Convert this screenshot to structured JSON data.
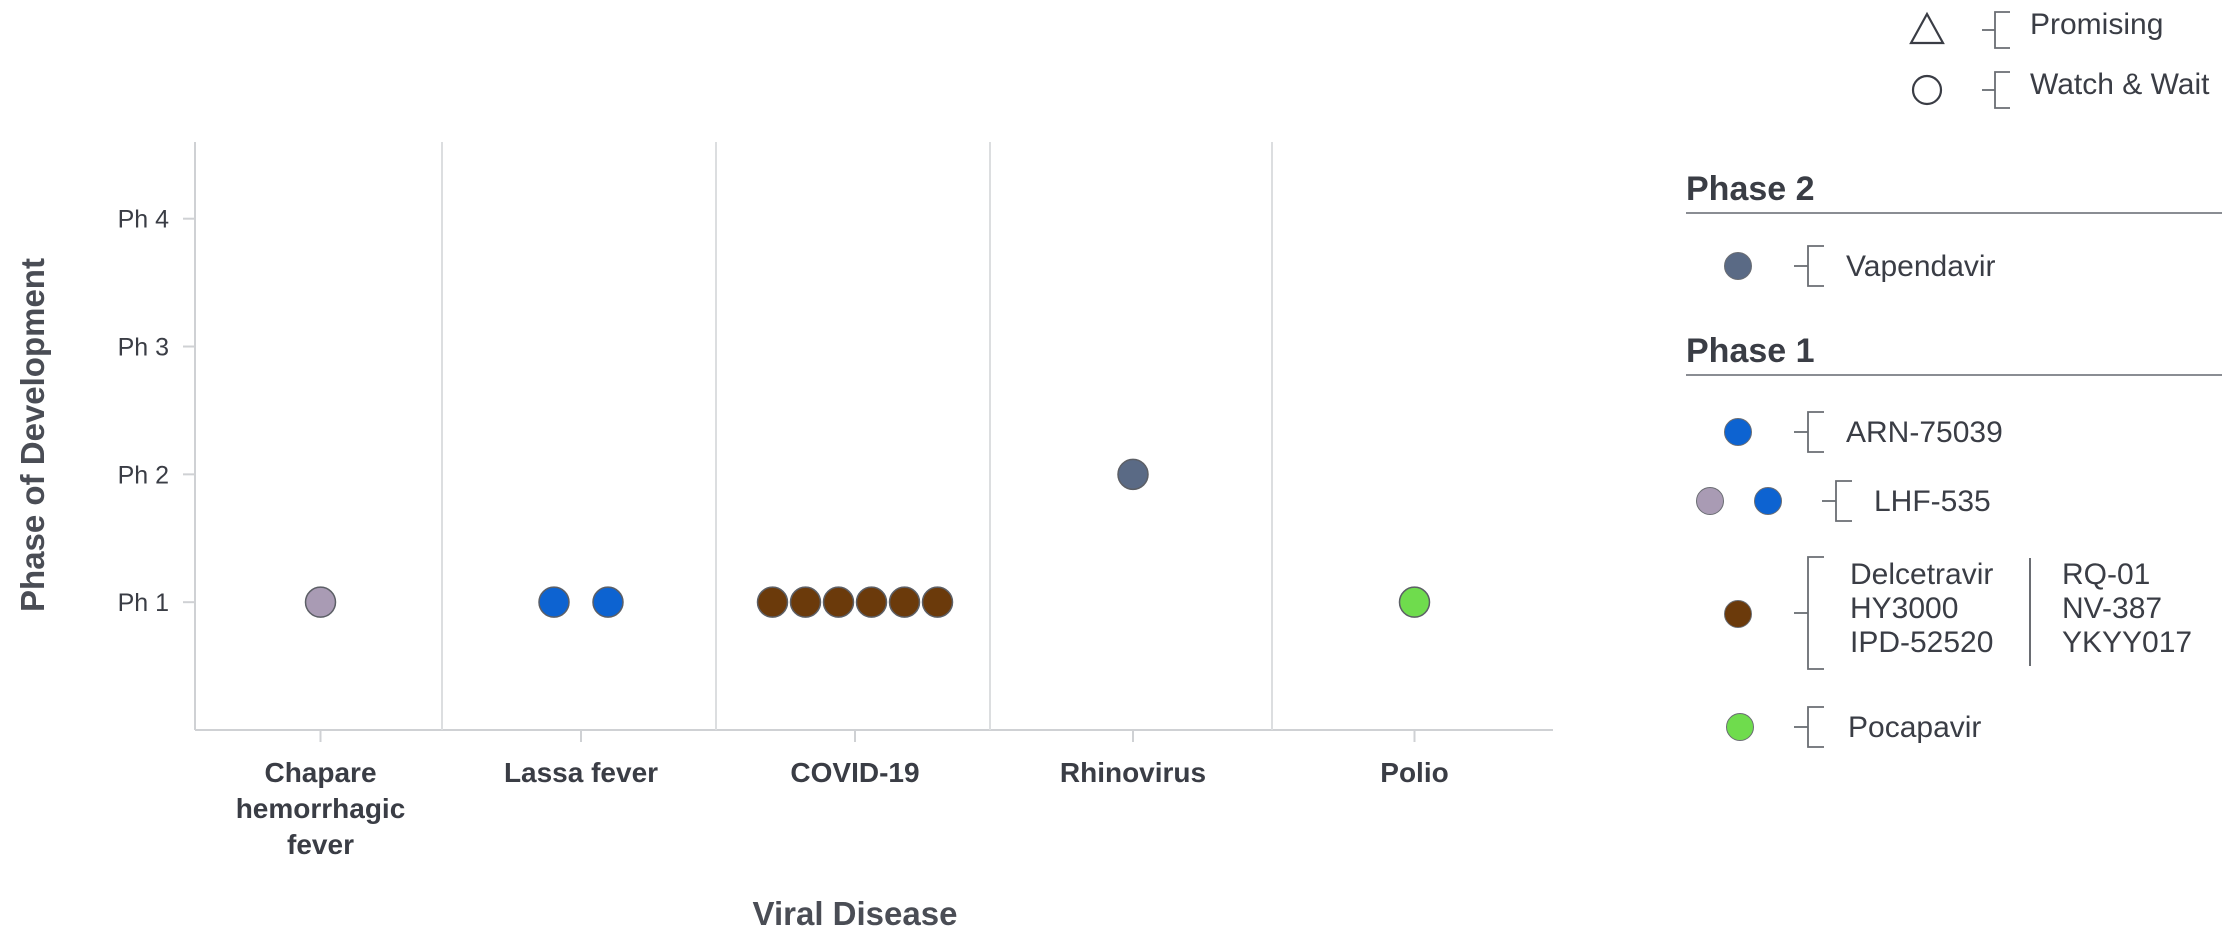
{
  "chart_data": {
    "type": "scatter",
    "xlabel": "Viral Disease",
    "ylabel": "Phase of Development",
    "categories": [
      "Chapare hemorrhagic fever",
      "Lassa fever",
      "COVID-19",
      "Rhinovirus",
      "Polio"
    ],
    "category_label_lines": [
      [
        "Chapare",
        "hemorrhagic",
        "fever"
      ],
      [
        "Lassa fever"
      ],
      [
        "COVID-19"
      ],
      [
        "Rhinovirus"
      ],
      [
        "Polio"
      ]
    ],
    "y_ticks": [
      {
        "value": 1,
        "label": "Ph 1"
      },
      {
        "value": 2,
        "label": "Ph 2"
      },
      {
        "value": 3,
        "label": "Ph 3"
      },
      {
        "value": 4,
        "label": "Ph 4"
      }
    ],
    "ylim": [
      0,
      4.6
    ],
    "grid": false,
    "points": [
      {
        "category": "Chapare hemorrhagic fever",
        "phase": 1,
        "drug": "LHF-535",
        "color": "#a99bb4"
      },
      {
        "category": "Lassa fever",
        "phase": 1,
        "drug": "LHF-535",
        "color": "#0d63d1"
      },
      {
        "category": "Lassa fever",
        "phase": 1,
        "drug": "ARN-75039",
        "color": "#0d63d1"
      },
      {
        "category": "COVID-19",
        "phase": 1,
        "drug": "Delcetravir",
        "color": "#6b3a0b"
      },
      {
        "category": "COVID-19",
        "phase": 1,
        "drug": "HY3000",
        "color": "#6b3a0b"
      },
      {
        "category": "COVID-19",
        "phase": 1,
        "drug": "IPD-52520",
        "color": "#6b3a0b"
      },
      {
        "category": "COVID-19",
        "phase": 1,
        "drug": "RQ-01",
        "color": "#6b3a0b"
      },
      {
        "category": "COVID-19",
        "phase": 1,
        "drug": "NV-387",
        "color": "#6b3a0b"
      },
      {
        "category": "COVID-19",
        "phase": 1,
        "drug": "YKYY017",
        "color": "#6b3a0b"
      },
      {
        "category": "Rhinovirus",
        "phase": 2,
        "drug": "Vapendavir",
        "color": "#5a6a85"
      },
      {
        "category": "Polio",
        "phase": 1,
        "drug": "Pocapavir",
        "color": "#6fdc4d"
      }
    ]
  },
  "legend_top": [
    {
      "shape": "triangle",
      "label": "Promising"
    },
    {
      "shape": "circle",
      "label": "Watch & Wait"
    }
  ],
  "legend_panel": {
    "phase2": {
      "title": "Phase 2",
      "entries": [
        {
          "colors": [
            "#5a6a85"
          ],
          "labels": [
            "Vapendavir"
          ]
        }
      ]
    },
    "phase1": {
      "title": "Phase 1",
      "entries": [
        {
          "colors": [
            "#0d63d1"
          ],
          "labels": [
            "ARN-75039"
          ]
        },
        {
          "colors": [
            "#a99bb4",
            "#0d63d1"
          ],
          "labels": [
            "LHF-535"
          ]
        },
        {
          "colors": [
            "#6b3a0b"
          ],
          "labels": [
            "Delcetravir",
            "HY3000",
            "IPD-52520",
            "RQ-01",
            "NV-387",
            "YKYY017"
          ]
        },
        {
          "colors": [
            "#6fdc4d"
          ],
          "labels": [
            "Pocapavir"
          ]
        }
      ]
    }
  }
}
